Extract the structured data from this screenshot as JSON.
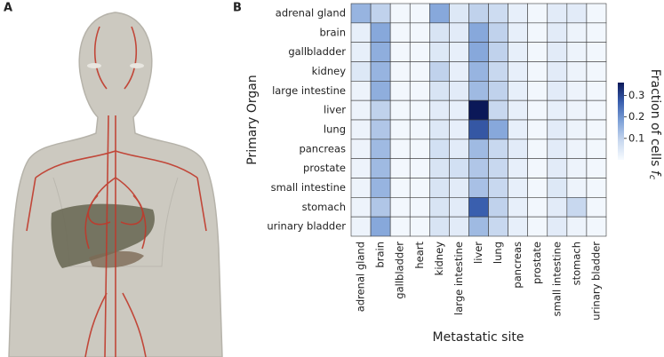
{
  "panel_labels": [
    "A",
    "B"
  ],
  "chart_data": {
    "type": "heatmap",
    "xlabel": "Metastatic site",
    "ylabel": "Primary Organ",
    "x_categories": [
      "adrenal gland",
      "brain",
      "gallbladder",
      "heart",
      "kidney",
      "large intestine",
      "liver",
      "lung",
      "pancreas",
      "prostate",
      "small intestine",
      "stomach",
      "urinary bladder"
    ],
    "y_categories": [
      "adrenal gland",
      "brain",
      "gallbladder",
      "kidney",
      "large intestine",
      "liver",
      "lung",
      "pancreas",
      "prostate",
      "small intestine",
      "stomach",
      "urinary bladder"
    ],
    "values": [
      [
        0.15,
        0.1,
        0.01,
        0.01,
        0.17,
        0.05,
        0.1,
        0.08,
        0.03,
        0.01,
        0.04,
        0.04,
        0.01
      ],
      [
        0.03,
        0.17,
        0.01,
        0.01,
        0.06,
        0.04,
        0.17,
        0.1,
        0.03,
        0.01,
        0.04,
        0.02,
        0.01
      ],
      [
        0.03,
        0.16,
        0.01,
        0.01,
        0.05,
        0.03,
        0.17,
        0.1,
        0.03,
        0.01,
        0.04,
        0.02,
        0.01
      ],
      [
        0.05,
        0.15,
        0.01,
        0.01,
        0.1,
        0.03,
        0.15,
        0.09,
        0.03,
        0.01,
        0.04,
        0.02,
        0.01
      ],
      [
        0.02,
        0.16,
        0.01,
        0.01,
        0.06,
        0.04,
        0.14,
        0.1,
        0.03,
        0.01,
        0.04,
        0.02,
        0.01
      ],
      [
        0.02,
        0.1,
        0.01,
        0.01,
        0.04,
        0.03,
        0.38,
        0.09,
        0.03,
        0.01,
        0.03,
        0.02,
        0.01
      ],
      [
        0.02,
        0.12,
        0.01,
        0.01,
        0.05,
        0.03,
        0.28,
        0.17,
        0.03,
        0.01,
        0.04,
        0.02,
        0.01
      ],
      [
        0.02,
        0.14,
        0.01,
        0.01,
        0.07,
        0.04,
        0.14,
        0.09,
        0.04,
        0.01,
        0.04,
        0.02,
        0.01
      ],
      [
        0.02,
        0.14,
        0.01,
        0.01,
        0.06,
        0.07,
        0.12,
        0.09,
        0.03,
        0.01,
        0.04,
        0.02,
        0.01
      ],
      [
        0.02,
        0.15,
        0.01,
        0.01,
        0.06,
        0.04,
        0.13,
        0.09,
        0.03,
        0.01,
        0.05,
        0.02,
        0.01
      ],
      [
        0.02,
        0.12,
        0.01,
        0.01,
        0.06,
        0.04,
        0.27,
        0.1,
        0.03,
        0.01,
        0.04,
        0.09,
        0.01
      ],
      [
        0.02,
        0.17,
        0.01,
        0.01,
        0.06,
        0.04,
        0.14,
        0.09,
        0.03,
        0.01,
        0.04,
        0.02,
        0.01
      ]
    ],
    "clim": [
      0,
      0.36
    ],
    "colorbar_ticks": [
      0.1,
      0.2,
      0.3
    ],
    "colorbar_label": {
      "text": "Fraction of cells",
      "symbol": "f",
      "subscript": "c"
    },
    "colorscale": [
      "#f7fbff",
      "#c8d8ef",
      "#7fa2d8",
      "#3a5fae",
      "#0b1858"
    ]
  }
}
